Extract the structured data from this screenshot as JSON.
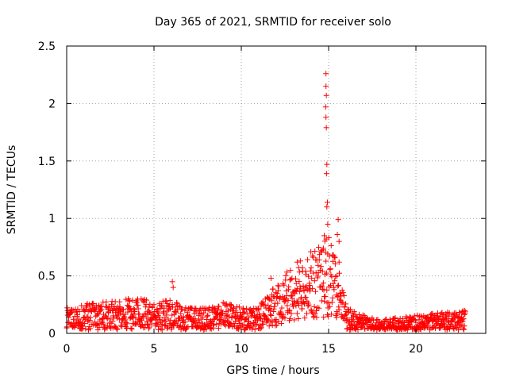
{
  "chart_data": {
    "type": "scatter",
    "title": "Day 365 of 2021, SRMTID for receiver solo",
    "xlabel": "GPS time / hours",
    "ylabel": "SRMTID / TECUs",
    "xlim": [
      0,
      24
    ],
    "ylim": [
      0,
      2.5
    ],
    "grid": true,
    "xticks": [
      0,
      5,
      10,
      15,
      20
    ],
    "xtick_labels": [
      "0",
      "5",
      "10",
      "15",
      "20"
    ],
    "yticks": [
      0,
      0.5,
      1,
      1.5,
      2,
      2.5
    ],
    "ytick_labels": [
      "0",
      "0.5",
      "1",
      "1.5",
      "2",
      "2.5"
    ],
    "marker": "+",
    "marker_color": "#ff0000",
    "series": [
      {
        "name": "SRMTID",
        "x_start": 0,
        "x_end": 22.83,
        "num_points": 1371,
        "baseline_profile": {
          "x": [
            0,
            1,
            2,
            3,
            4,
            5,
            6,
            7,
            8,
            9,
            10,
            11,
            11.5,
            12,
            12.5,
            13,
            13.5,
            14,
            14.5,
            15,
            15.5,
            16,
            16.5,
            17,
            18,
            19,
            20,
            21,
            22,
            22.83
          ],
          "y": [
            0.12,
            0.14,
            0.15,
            0.16,
            0.18,
            0.15,
            0.16,
            0.12,
            0.12,
            0.16,
            0.12,
            0.12,
            0.2,
            0.25,
            0.3,
            0.36,
            0.4,
            0.42,
            0.45,
            0.5,
            0.35,
            0.15,
            0.1,
            0.08,
            0.06,
            0.07,
            0.08,
            0.09,
            0.1,
            0.11
          ]
        },
        "notable_points": [
          {
            "x": 14.85,
            "y": 2.26
          },
          {
            "x": 14.85,
            "y": 2.15
          },
          {
            "x": 14.87,
            "y": 2.07
          },
          {
            "x": 14.83,
            "y": 1.97
          },
          {
            "x": 14.85,
            "y": 1.88
          },
          {
            "x": 14.87,
            "y": 1.79
          },
          {
            "x": 14.9,
            "y": 1.47
          },
          {
            "x": 14.88,
            "y": 1.39
          },
          {
            "x": 14.93,
            "y": 1.14
          },
          {
            "x": 14.9,
            "y": 1.1
          },
          {
            "x": 14.95,
            "y": 0.95
          },
          {
            "x": 15.55,
            "y": 0.99
          },
          {
            "x": 15.5,
            "y": 0.86
          },
          {
            "x": 15.6,
            "y": 0.8
          },
          {
            "x": 14.75,
            "y": 0.85
          },
          {
            "x": 14.7,
            "y": 0.74
          },
          {
            "x": 15.6,
            "y": 0.62
          },
          {
            "x": 13.2,
            "y": 0.62
          },
          {
            "x": 14.0,
            "y": 0.57
          },
          {
            "x": 6.05,
            "y": 0.45
          },
          {
            "x": 6.1,
            "y": 0.4
          },
          {
            "x": 11.7,
            "y": 0.48
          }
        ]
      }
    ]
  }
}
